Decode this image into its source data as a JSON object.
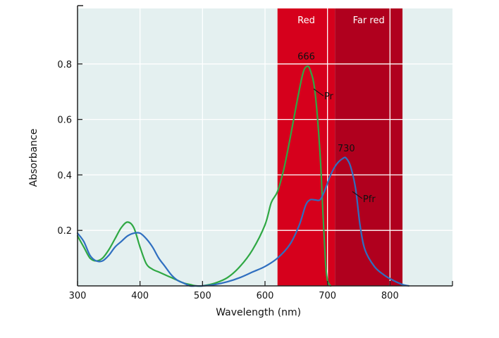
{
  "chart_data": {
    "type": "line",
    "title": "",
    "xlabel": "Wavelength (nm)",
    "ylabel": "Absorbance",
    "xlim": [
      300,
      900
    ],
    "ylim": [
      0,
      1.0
    ],
    "x_ticks": [
      300,
      400,
      500,
      600,
      700,
      800
    ],
    "x_tick_labels": [
      "300",
      "400",
      "500",
      "600",
      "700",
      "800"
    ],
    "y_ticks": [
      0.2,
      0.4,
      0.6,
      0.8
    ],
    "y_tick_labels": [
      "0.2",
      "0.4",
      "0.6",
      "0.8"
    ],
    "grid": true,
    "colors": {
      "plot_bg": "#e4f0f0",
      "grid": "#ffffff",
      "red_band": "#d6001c",
      "far_red_band": "#b0001e",
      "pr": "#2fa844",
      "pfr": "#2f6fc0",
      "axis": "#222222"
    },
    "bands": [
      {
        "label": "Red",
        "x0": 620,
        "x1": 712
      },
      {
        "label": "Far red",
        "x0": 712,
        "x1": 820
      }
    ],
    "series": [
      {
        "name": "Pr",
        "points": [
          [
            300,
            0.18
          ],
          [
            310,
            0.14
          ],
          [
            320,
            0.1
          ],
          [
            330,
            0.09
          ],
          [
            340,
            0.1
          ],
          [
            350,
            0.13
          ],
          [
            360,
            0.17
          ],
          [
            370,
            0.21
          ],
          [
            380,
            0.23
          ],
          [
            390,
            0.21
          ],
          [
            400,
            0.14
          ],
          [
            410,
            0.08
          ],
          [
            420,
            0.06
          ],
          [
            430,
            0.05
          ],
          [
            440,
            0.04
          ],
          [
            450,
            0.03
          ],
          [
            460,
            0.02
          ],
          [
            470,
            0.01
          ],
          [
            480,
            0.005
          ],
          [
            490,
            0.0
          ],
          [
            500,
            0.0
          ],
          [
            520,
            0.01
          ],
          [
            540,
            0.03
          ],
          [
            560,
            0.07
          ],
          [
            580,
            0.13
          ],
          [
            600,
            0.22
          ],
          [
            610,
            0.3
          ],
          [
            620,
            0.34
          ],
          [
            630,
            0.42
          ],
          [
            640,
            0.53
          ],
          [
            650,
            0.65
          ],
          [
            660,
            0.76
          ],
          [
            666,
            0.79
          ],
          [
            672,
            0.78
          ],
          [
            680,
            0.7
          ],
          [
            688,
            0.48
          ],
          [
            693,
            0.25
          ],
          [
            697,
            0.08
          ],
          [
            700,
            0.02
          ],
          [
            705,
            0.0
          ]
        ]
      },
      {
        "name": "Pfr",
        "points": [
          [
            300,
            0.19
          ],
          [
            310,
            0.16
          ],
          [
            320,
            0.11
          ],
          [
            330,
            0.09
          ],
          [
            340,
            0.09
          ],
          [
            350,
            0.11
          ],
          [
            360,
            0.14
          ],
          [
            370,
            0.16
          ],
          [
            380,
            0.18
          ],
          [
            390,
            0.19
          ],
          [
            400,
            0.19
          ],
          [
            410,
            0.17
          ],
          [
            420,
            0.14
          ],
          [
            430,
            0.1
          ],
          [
            440,
            0.07
          ],
          [
            450,
            0.04
          ],
          [
            460,
            0.02
          ],
          [
            470,
            0.01
          ],
          [
            480,
            0.0
          ],
          [
            490,
            0.0
          ],
          [
            500,
            0.0
          ],
          [
            520,
            0.005
          ],
          [
            540,
            0.015
          ],
          [
            560,
            0.03
          ],
          [
            580,
            0.05
          ],
          [
            600,
            0.07
          ],
          [
            620,
            0.1
          ],
          [
            640,
            0.15
          ],
          [
            655,
            0.22
          ],
          [
            665,
            0.29
          ],
          [
            672,
            0.31
          ],
          [
            680,
            0.31
          ],
          [
            688,
            0.31
          ],
          [
            695,
            0.34
          ],
          [
            705,
            0.4
          ],
          [
            715,
            0.44
          ],
          [
            725,
            0.46
          ],
          [
            730,
            0.46
          ],
          [
            737,
            0.43
          ],
          [
            745,
            0.35
          ],
          [
            752,
            0.22
          ],
          [
            760,
            0.13
          ],
          [
            775,
            0.07
          ],
          [
            790,
            0.04
          ],
          [
            805,
            0.02
          ],
          [
            820,
            0.005
          ],
          [
            830,
            0.0
          ]
        ]
      }
    ],
    "annotations": [
      {
        "text": "666",
        "x": 666,
        "y": 0.79,
        "type": "peak"
      },
      {
        "text": "730",
        "x": 730,
        "y": 0.46,
        "type": "peak"
      },
      {
        "text": "Pr",
        "x": 680,
        "y": 0.7,
        "type": "series-label"
      },
      {
        "text": "Pfr",
        "x": 742,
        "y": 0.33,
        "type": "series-label"
      }
    ]
  }
}
